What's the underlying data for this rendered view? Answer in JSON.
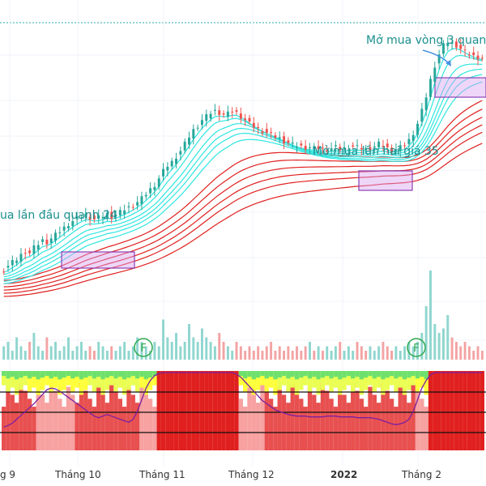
{
  "chart_data": {
    "type": "candlestick",
    "x_ticks": [
      "g 9",
      "Tháng 10",
      "Tháng 11",
      "Tháng 12",
      "2022",
      "Tháng 2"
    ],
    "annotations": [
      {
        "id": "buy1",
        "text": "ua lần đầu quanh 24"
      },
      {
        "id": "buy2",
        "text": "Mở mua lần hai giá 35"
      },
      {
        "id": "buy3",
        "text": "Mở mua  vòng 3 quan"
      }
    ],
    "markers": [
      {
        "id": "f1",
        "text": "F"
      },
      {
        "id": "f2",
        "text": "F"
      }
    ],
    "price_series": [
      18.2,
      18.6,
      19.0,
      19.3,
      19.8,
      20.2,
      20.0,
      20.6,
      21.0,
      21.4,
      21.2,
      21.6,
      22.0,
      22.4,
      22.8,
      23.2,
      23.5,
      23.8,
      24.0,
      24.2,
      23.9,
      23.7,
      23.9,
      24.1,
      24.3,
      24.0,
      24.2,
      24.5,
      24.8,
      25.0,
      25.3,
      25.6,
      26.0,
      26.5,
      27.0,
      27.5,
      28.2,
      29.0,
      29.6,
      30.0,
      30.6,
      31.2,
      32.0,
      32.8,
      33.5,
      34.0,
      34.6,
      35.0,
      35.4,
      35.6,
      35.4,
      35.2,
      35.3,
      35.6,
      35.4,
      35.0,
      34.6,
      34.2,
      33.9,
      33.6,
      33.4,
      33.2,
      33.0,
      32.8,
      32.6,
      32.3,
      32.1,
      31.9,
      31.8,
      31.7,
      31.6,
      31.6,
      31.5,
      31.5,
      31.4,
      31.4,
      31.5,
      31.6,
      31.4,
      31.5,
      31.6,
      31.7,
      31.6,
      31.5,
      31.4,
      31.5,
      31.7,
      32.0,
      31.8,
      31.5,
      31.3,
      31.4,
      31.6,
      31.9,
      32.4,
      33.2,
      34.2,
      35.6,
      37.2,
      39.0,
      40.6,
      41.8,
      42.8,
      43.2,
      43.0,
      42.8,
      42.4,
      42.0,
      41.8,
      41.6,
      41.5,
      41.4
    ],
    "volume_series": [
      3,
      4,
      2,
      5,
      3,
      2,
      4,
      6,
      3,
      2,
      5,
      3,
      4,
      2,
      3,
      5,
      2,
      3,
      4,
      2,
      3,
      2,
      4,
      3,
      2,
      3,
      2,
      3,
      4,
      2,
      3,
      5,
      4,
      3,
      2,
      4,
      3,
      9,
      5,
      4,
      6,
      3,
      4,
      8,
      5,
      4,
      7,
      5,
      4,
      3,
      6,
      4,
      3,
      2,
      4,
      3,
      2,
      3,
      2,
      3,
      2,
      3,
      4,
      2,
      3,
      2,
      3,
      2,
      3,
      2,
      3,
      4,
      2,
      3,
      2,
      3,
      2,
      3,
      4,
      2,
      3,
      2,
      4,
      3,
      2,
      3,
      2,
      3,
      4,
      3,
      2,
      3,
      2,
      3,
      4,
      3,
      4,
      6,
      12,
      20,
      8,
      6,
      7,
      10,
      5,
      4,
      3,
      4,
      3,
      2,
      3,
      2,
      3,
      2
    ],
    "oscillator_line": [
      0.3,
      0.32,
      0.35,
      0.4,
      0.45,
      0.5,
      0.55,
      0.6,
      0.66,
      0.72,
      0.78,
      0.8,
      0.79,
      0.76,
      0.72,
      0.68,
      0.64,
      0.6,
      0.56,
      0.52,
      0.48,
      0.44,
      0.42,
      0.44,
      0.46,
      0.44,
      0.42,
      0.4,
      0.38,
      0.36,
      0.4,
      0.5,
      0.65,
      0.8,
      0.9,
      0.96,
      0.99,
      1.0,
      1.0,
      1.0,
      1.0,
      1.0,
      1.0,
      1.0,
      1.0,
      1.0,
      1.0,
      1.0,
      1.0,
      1.0,
      1.0,
      1.0,
      1.0,
      1.0,
      0.98,
      0.94,
      0.88,
      0.82,
      0.76,
      0.7,
      0.64,
      0.6,
      0.56,
      0.52,
      0.5,
      0.48,
      0.46,
      0.45,
      0.44,
      0.44,
      0.44,
      0.43,
      0.43,
      0.43,
      0.43,
      0.44,
      0.44,
      0.44,
      0.43,
      0.43,
      0.43,
      0.43,
      0.42,
      0.42,
      0.42,
      0.42,
      0.41,
      0.4,
      0.38,
      0.36,
      0.34,
      0.33,
      0.34,
      0.36,
      0.4,
      0.5,
      0.65,
      0.8,
      0.9,
      0.97,
      1.0,
      1.0,
      1.0,
      1.0,
      1.0,
      1.0,
      1.0,
      1.0,
      1.0,
      1.0,
      1.0,
      1.0
    ]
  }
}
